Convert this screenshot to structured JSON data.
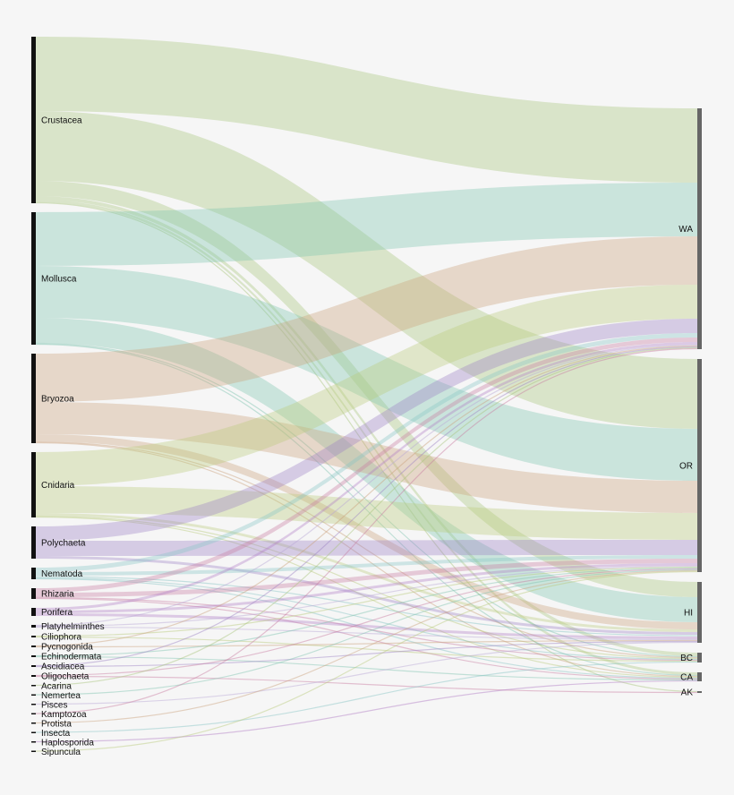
{
  "colors": {
    "background": "#f6f6f6",
    "source_bar": "#111111",
    "target_bar": "#666666",
    "crustacea": "#a7c47a",
    "mollusca": "#7ec4b0",
    "bryozoa": "#c9a07b",
    "cnidaria": "#b9c97a",
    "polychaeta": "#9b80c4",
    "nematoda": "#86c4c4",
    "rhizaria": "#c779a0",
    "porifera": "#b07ac4",
    "minor": "#b7a6d4"
  },
  "source_nodes": [
    {
      "label": "Crustacea",
      "color_key": "crustacea"
    },
    {
      "label": "Mollusca",
      "color_key": "mollusca"
    },
    {
      "label": "Bryozoa",
      "color_key": "bryozoa"
    },
    {
      "label": "Cnidaria",
      "color_key": "cnidaria"
    },
    {
      "label": "Polychaeta",
      "color_key": "polychaeta"
    },
    {
      "label": "Nematoda",
      "color_key": "nematoda"
    },
    {
      "label": "Rhizaria",
      "color_key": "rhizaria"
    },
    {
      "label": "Porifera",
      "color_key": "porifera"
    },
    {
      "label": "Platyhelminthes",
      "color_key": "minor"
    },
    {
      "label": "Ciliophora",
      "color_key": "cnidaria"
    },
    {
      "label": "Pycnogonida",
      "color_key": "bryozoa"
    },
    {
      "label": "Echinodermata",
      "color_key": "mollusca"
    },
    {
      "label": "Ascidiacea",
      "color_key": "polychaeta"
    },
    {
      "label": "Oligochaeta",
      "color_key": "rhizaria"
    },
    {
      "label": "Acarina",
      "color_key": "crustacea"
    },
    {
      "label": "Nemertea",
      "color_key": "mollusca"
    },
    {
      "label": "Pisces",
      "color_key": "minor"
    },
    {
      "label": "Kamptozoa",
      "color_key": "rhizaria"
    },
    {
      "label": "Protista",
      "color_key": "bryozoa"
    },
    {
      "label": "Insecta",
      "color_key": "nematoda"
    },
    {
      "label": "Haplosporida",
      "color_key": "porifera"
    },
    {
      "label": "Sipuncula",
      "color_key": "cnidaria"
    }
  ],
  "target_nodes": [
    {
      "label": "WA"
    },
    {
      "label": "OR"
    },
    {
      "label": "HI"
    },
    {
      "label": "BC"
    },
    {
      "label": "CA"
    },
    {
      "label": "AK"
    }
  ],
  "flows": [
    {
      "source": "Crustacea",
      "target": "WA",
      "value": 83
    },
    {
      "source": "Crustacea",
      "target": "OR",
      "value": 78
    },
    {
      "source": "Crustacea",
      "target": "HI",
      "value": 17
    },
    {
      "source": "Crustacea",
      "target": "BC",
      "value": 4
    },
    {
      "source": "Crustacea",
      "target": "CA",
      "value": 3
    },
    {
      "source": "Crustacea",
      "target": "AK",
      "value": 1
    },
    {
      "source": "Mollusca",
      "target": "WA",
      "value": 60
    },
    {
      "source": "Mollusca",
      "target": "OR",
      "value": 58
    },
    {
      "source": "Mollusca",
      "target": "HI",
      "value": 28
    },
    {
      "source": "Mollusca",
      "target": "BC",
      "value": 1
    },
    {
      "source": "Mollusca",
      "target": "CA",
      "value": 1
    },
    {
      "source": "Bryozoa",
      "target": "WA",
      "value": 54
    },
    {
      "source": "Bryozoa",
      "target": "OR",
      "value": 36
    },
    {
      "source": "Bryozoa",
      "target": "HI",
      "value": 8
    },
    {
      "source": "Bryozoa",
      "target": "BC",
      "value": 1
    },
    {
      "source": "Bryozoa",
      "target": "CA",
      "value": 1
    },
    {
      "source": "Cnidaria",
      "target": "WA",
      "value": 38
    },
    {
      "source": "Cnidaria",
      "target": "OR",
      "value": 30
    },
    {
      "source": "Cnidaria",
      "target": "HI",
      "value": 3
    },
    {
      "source": "Cnidaria",
      "target": "BC",
      "value": 1
    },
    {
      "source": "Cnidaria",
      "target": "CA",
      "value": 1
    },
    {
      "source": "Polychaeta",
      "target": "WA",
      "value": 16
    },
    {
      "source": "Polychaeta",
      "target": "OR",
      "value": 17
    },
    {
      "source": "Polychaeta",
      "target": "HI",
      "value": 3
    },
    {
      "source": "Nematoda",
      "target": "WA",
      "value": 5
    },
    {
      "source": "Nematoda",
      "target": "OR",
      "value": 4
    },
    {
      "source": "Nematoda",
      "target": "HI",
      "value": 2
    },
    {
      "source": "Nematoda",
      "target": "BC",
      "value": 1
    },
    {
      "source": "Nematoda",
      "target": "CA",
      "value": 1
    },
    {
      "source": "Rhizaria",
      "target": "WA",
      "value": 5
    },
    {
      "source": "Rhizaria",
      "target": "OR",
      "value": 5
    },
    {
      "source": "Rhizaria",
      "target": "BC",
      "value": 1
    },
    {
      "source": "Rhizaria",
      "target": "CA",
      "value": 1
    },
    {
      "source": "Porifera",
      "target": "WA",
      "value": 3
    },
    {
      "source": "Porifera",
      "target": "OR",
      "value": 3
    },
    {
      "source": "Porifera",
      "target": "HI",
      "value": 3
    },
    {
      "source": "Platyhelminthes",
      "target": "WA",
      "value": 1
    },
    {
      "source": "Platyhelminthes",
      "target": "OR",
      "value": 1
    },
    {
      "source": "Platyhelminthes",
      "target": "HI",
      "value": 1
    },
    {
      "source": "Ciliophora",
      "target": "OR",
      "value": 1
    },
    {
      "source": "Ciliophora",
      "target": "BC",
      "value": 1
    },
    {
      "source": "Pycnogonida",
      "target": "WA",
      "value": 1
    },
    {
      "source": "Pycnogonida",
      "target": "HI",
      "value": 1
    },
    {
      "source": "Echinodermata",
      "target": "OR",
      "value": 1
    },
    {
      "source": "Echinodermata",
      "target": "CA",
      "value": 1
    },
    {
      "source": "Ascidiacea",
      "target": "WA",
      "value": 1
    },
    {
      "source": "Ascidiacea",
      "target": "HI",
      "value": 1
    },
    {
      "source": "Oligochaeta",
      "target": "OR",
      "value": 1
    },
    {
      "source": "Oligochaeta",
      "target": "AK",
      "value": 1
    },
    {
      "source": "Acarina",
      "target": "WA",
      "value": 1
    },
    {
      "source": "Nemertea",
      "target": "OR",
      "value": 1
    },
    {
      "source": "Pisces",
      "target": "HI",
      "value": 1
    },
    {
      "source": "Kamptozoa",
      "target": "WA",
      "value": 1
    },
    {
      "source": "Protista",
      "target": "OR",
      "value": 1
    },
    {
      "source": "Insecta",
      "target": "BC",
      "value": 1
    },
    {
      "source": "Haplosporida",
      "target": "CA",
      "value": 1
    },
    {
      "source": "Sipuncula",
      "target": "OR",
      "value": 1
    }
  ]
}
